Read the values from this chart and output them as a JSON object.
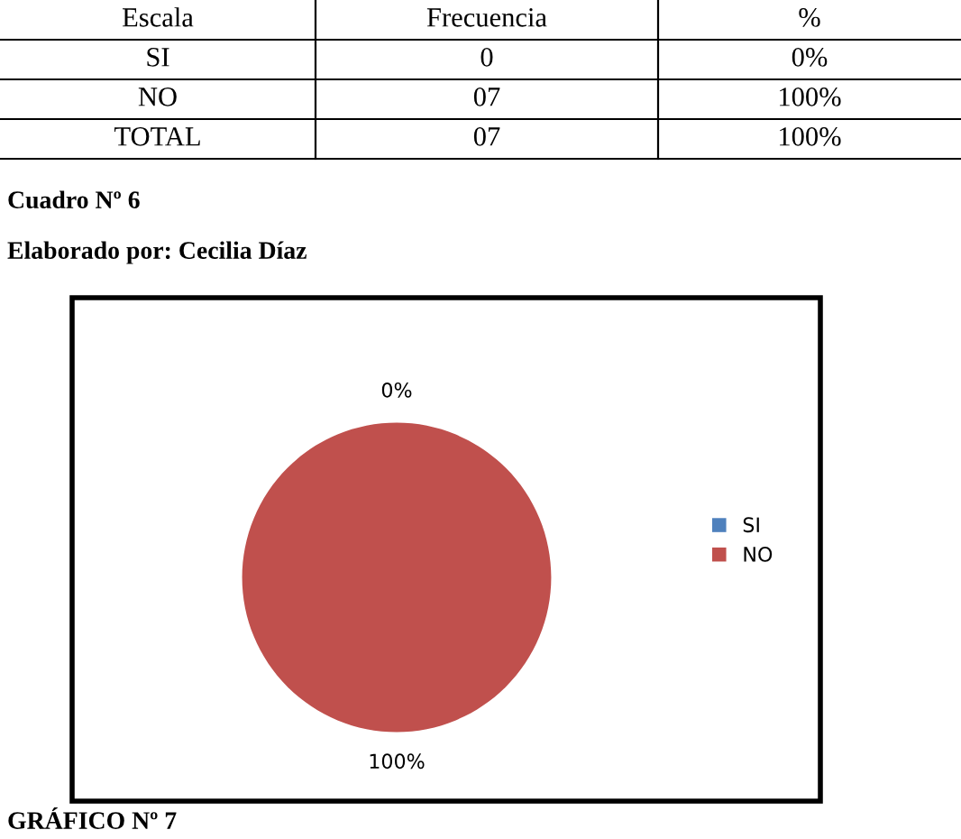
{
  "chart_data": {
    "type": "pie",
    "categories": [
      "SI",
      "NO"
    ],
    "values": [
      0,
      100
    ],
    "colors": [
      "#4f81bd",
      "#c0504d"
    ],
    "value_labels": [
      "0%",
      "100%"
    ],
    "legend": "right",
    "annotations": [
      "Escala",
      "Frecuencia",
      "%",
      "SI",
      "0",
      "0%",
      "NO",
      "07",
      "100%",
      "TOTAL",
      "07",
      "100%",
      "Cuadro Nº 6",
      "Elaborado por: Cecilia Díaz",
      "GRÁFICO Nº 7"
    ]
  }
}
